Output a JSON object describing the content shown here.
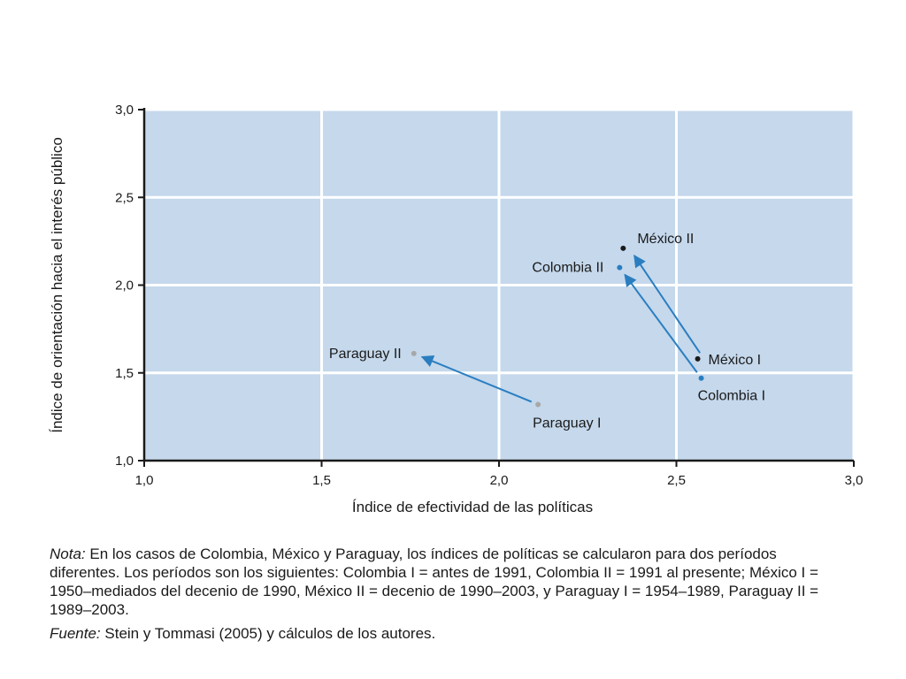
{
  "chart_data": {
    "type": "scatter",
    "xlabel": "Índice de efectividad de las políticas",
    "ylabel": "Índice de orientación hacia el interés público",
    "xlim": [
      1.0,
      3.0
    ],
    "ylim": [
      1.0,
      3.0
    ],
    "xticks": [
      "1,0",
      "1,5",
      "2,0",
      "2,5",
      "3,0"
    ],
    "xtick_values": [
      1.0,
      1.5,
      2.0,
      2.5,
      3.0
    ],
    "yticks": [
      "1,0",
      "1,5",
      "2,0",
      "2,5",
      "3,0"
    ],
    "ytick_values": [
      1.0,
      1.5,
      2.0,
      2.5,
      3.0
    ],
    "grid": true,
    "plot_background": "#c5d8ec",
    "grid_color": "#ffffff",
    "arrow_color": "#2a7ec0",
    "points": [
      {
        "label": "Paraguay I",
        "x": 2.11,
        "y": 1.32,
        "color": "#a8a8a8"
      },
      {
        "label": "Paraguay II",
        "x": 1.76,
        "y": 1.61,
        "color": "#a8a8a8"
      },
      {
        "label": "México I",
        "x": 2.56,
        "y": 1.58,
        "color": "#1a1a1a"
      },
      {
        "label": "México II",
        "x": 2.35,
        "y": 2.21,
        "color": "#1a1a1a"
      },
      {
        "label": "Colombia I",
        "x": 2.57,
        "y": 1.47,
        "color": "#2a7ec0"
      },
      {
        "label": "Colombia II",
        "x": 2.34,
        "y": 2.1,
        "color": "#2a7ec0"
      }
    ],
    "arrows": [
      {
        "from": "Paraguay I",
        "to": "Paraguay II"
      },
      {
        "from": "México I",
        "to": "México II"
      },
      {
        "from": "Colombia I",
        "to": "Colombia II"
      }
    ]
  },
  "note": {
    "label": "Nota:",
    "text": "En los casos de Colombia, México y Paraguay, los índices de políticas se calcularon para dos períodos diferentes. Los períodos son los siguientes: Colombia I = antes de 1991, Colombia II = 1991 al presente; México I = 1950–mediados del decenio de 1990, México II = decenio de 1990–2003, y Paraguay I = 1954–1989, Paraguay II = 1989–2003."
  },
  "source": {
    "label": "Fuente:",
    "text": "Stein y Tommasi (2005) y cálculos de los autores."
  }
}
